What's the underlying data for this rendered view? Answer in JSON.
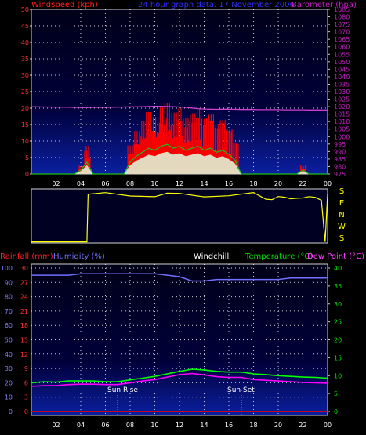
{
  "header": {
    "left_label": "Windspeed (kph)",
    "center_label": "24 hour graph data. 17 November 2006",
    "right_label": "Barometer (hpa)"
  },
  "colors": {
    "wind": "#ff0000",
    "gust_fill": "#dfffdf",
    "avg": "#18c018",
    "baro": "#d040d0",
    "dir": "#ffff00",
    "hum": "#7070ff",
    "temp": "#00ff00",
    "dew": "#ff00ff",
    "rain": "#ff0000",
    "grid": "#ffffff",
    "axis_text": "#ff3030",
    "baro_text": "#c020c0",
    "temp_text": "#00e000"
  },
  "x_ticks": [
    "02",
    "04",
    "06",
    "08",
    "10",
    "12",
    "14",
    "16",
    "18",
    "20",
    "22",
    "00"
  ],
  "direction": {
    "letters": [
      "S",
      "E",
      "N",
      "W",
      "S"
    ]
  },
  "panel2": {
    "rain_label": "Rainfall (mm)",
    "hum_label": "Humidity (%)",
    "windchill_label": "Windchill",
    "temp_label": "Temperature (°C)",
    "dew_label": "Dew Point (°C)",
    "sunrise_label": "Sun Rise",
    "sunset_label": "Sun Set"
  },
  "chart_data": [
    {
      "type": "area",
      "panel": "wind_and_barometer",
      "x_hours": [
        0,
        0.5,
        1,
        1.5,
        2,
        2.5,
        3,
        3.5,
        4,
        4.5,
        5,
        5.5,
        6,
        6.5,
        7,
        7.5,
        8,
        8.5,
        9,
        9.5,
        10,
        10.5,
        11,
        11.5,
        12,
        12.5,
        13,
        13.5,
        14,
        14.5,
        15,
        15.5,
        16,
        16.5,
        17,
        17.5,
        18,
        18.5,
        19,
        19.5,
        20,
        20.5,
        21,
        21.5,
        22,
        22.5,
        23,
        23.5,
        24
      ],
      "ylim_left": [
        0,
        50
      ],
      "yticks_left": [
        0,
        5,
        10,
        15,
        20,
        25,
        30,
        35,
        40,
        45,
        50
      ],
      "ylim_right": [
        975,
        1085
      ],
      "yticks_right": [
        975,
        980,
        985,
        990,
        995,
        1000,
        1005,
        1010,
        1015,
        1020,
        1025,
        1030,
        1035,
        1040,
        1045,
        1050,
        1055,
        1060,
        1065,
        1070,
        1075,
        1080,
        1085
      ],
      "series": [
        {
          "name": "Windspeed (kph)",
          "values": [
            0,
            0,
            0,
            0,
            0,
            0,
            0,
            0,
            2,
            6,
            0,
            0,
            0,
            0,
            0,
            0,
            6,
            9,
            11,
            13,
            12,
            14,
            15,
            13,
            14,
            12,
            13,
            14,
            12,
            13,
            11,
            12,
            10,
            7,
            0,
            0,
            0,
            0,
            0,
            0,
            0,
            0,
            0,
            0,
            2,
            0,
            0,
            0,
            0
          ]
        },
        {
          "name": "Barometer (hpa)",
          "values": [
            1020,
            1019.9,
            1019.8,
            1019.8,
            1019.7,
            1019.7,
            1019.6,
            1019.5,
            1019.4,
            1019.4,
            1019.5,
            1019.5,
            1019.5,
            1019.6,
            1019.7,
            1019.8,
            1019.9,
            1019.9,
            1020,
            1020.1,
            1020.2,
            1020.2,
            1020.1,
            1020,
            1019.8,
            1019.5,
            1019.1,
            1018.7,
            1018.4,
            1018.3,
            1018.2,
            1018.3,
            1018.3,
            1018.2,
            1018.1,
            1018.1,
            1018.1,
            1018.0,
            1018.0,
            1018.0,
            1018.0,
            1017.9,
            1017.9,
            1017.9,
            1017.9,
            1017.8,
            1017.8,
            1017.8,
            1017.8
          ]
        }
      ]
    },
    {
      "type": "line",
      "panel": "wind_direction",
      "x_hours": [
        0,
        4.5,
        4.6,
        6,
        8,
        10,
        11,
        12,
        14,
        16,
        18,
        19,
        19.5,
        20,
        20.5,
        21,
        21.5,
        22,
        22.5,
        23,
        23.5,
        23.8,
        24
      ],
      "series": [
        {
          "name": "Direction",
          "values": [
            "S",
            "S",
            "N",
            "N",
            "N",
            "N",
            "N",
            "N",
            "N",
            "N",
            "N",
            "N",
            "N",
            "N",
            "N",
            "N",
            "N",
            "N",
            "N",
            "N",
            "N",
            "S",
            "N"
          ]
        }
      ]
    },
    {
      "type": "line",
      "panel": "humidity_temperature",
      "x_hours": [
        0,
        1,
        2,
        3,
        4,
        5,
        6,
        7,
        8,
        9,
        10,
        11,
        12,
        13,
        14,
        15,
        16,
        17,
        18,
        19,
        20,
        21,
        22,
        23,
        24
      ],
      "ylim_left": [
        0,
        100
      ],
      "yticks_left": [
        0,
        10,
        20,
        30,
        40,
        50,
        60,
        70,
        80,
        90,
        100
      ],
      "ylim_right": [
        0,
        40
      ],
      "yticks_right": [
        0,
        5,
        10,
        15,
        20,
        25,
        30,
        35,
        40
      ],
      "series": [
        {
          "name": "Humidity (%)",
          "values": [
            95,
            95,
            95,
            95,
            96,
            96,
            96,
            96,
            96,
            96,
            96,
            95,
            94,
            91,
            91,
            92,
            92,
            92,
            92,
            92,
            92,
            93,
            93,
            93,
            93
          ]
        },
        {
          "name": "Temperature (°C)",
          "values": [
            8,
            8.3,
            8.2,
            8.5,
            8.5,
            8.5,
            8.3,
            8.3,
            8.8,
            9.3,
            9.8,
            10.5,
            11.2,
            11.8,
            11.6,
            11.2,
            11,
            11,
            10.5,
            10.3,
            10,
            9.8,
            9.6,
            9.5,
            9.3
          ]
        },
        {
          "name": "Dew Point (°C)",
          "values": [
            7,
            7.2,
            7.2,
            7.5,
            7.6,
            7.6,
            7.5,
            7.5,
            8,
            8.5,
            8.9,
            9.6,
            10.3,
            10.6,
            10.2,
            9.7,
            9.5,
            9.5,
            8.9,
            8.7,
            8.5,
            8.3,
            8.1,
            8,
            7.9
          ]
        },
        {
          "name": "Rainfall (mm)",
          "values": [
            0,
            0,
            0,
            0,
            0,
            0,
            0,
            0,
            0,
            0,
            0,
            0,
            0,
            0,
            0,
            0,
            0,
            0,
            0,
            0,
            0,
            0,
            0,
            0,
            0
          ]
        }
      ]
    }
  ]
}
